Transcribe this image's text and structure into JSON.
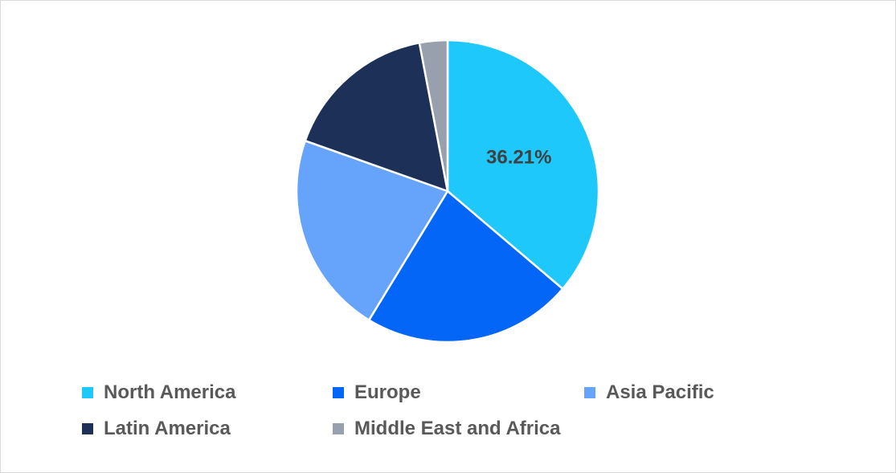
{
  "chart_data": {
    "type": "pie",
    "categories": [
      "North America",
      "Europe",
      "Asia Pacific",
      "Latin America",
      "Middle East and Africa"
    ],
    "values": [
      36.21,
      22.5,
      21.7,
      16.6,
      2.99
    ],
    "colors": [
      "#1fc8fb",
      "#0466f6",
      "#66a3fb",
      "#1d3057",
      "#97a0ac"
    ],
    "data_labels": [
      "36.21%",
      "",
      "",
      "",
      ""
    ],
    "legend_position": "bottom",
    "start_angle": "12 o'clock, clockwise"
  }
}
